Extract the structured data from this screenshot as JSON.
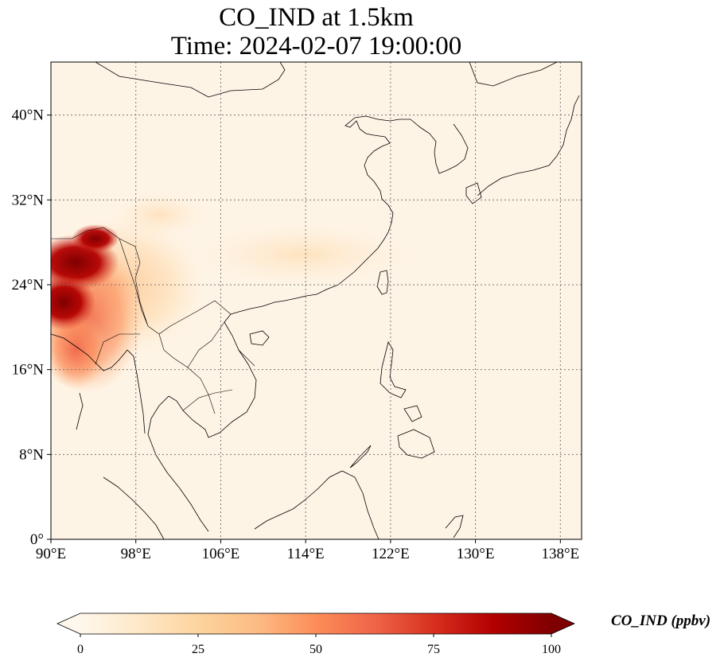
{
  "title": {
    "line1": "CO_IND at 1.5km",
    "line2": "Time: 2024-02-07 19:00:00"
  },
  "map": {
    "extent": {
      "lon": [
        90,
        140
      ],
      "lat": [
        0,
        45
      ]
    },
    "lon_ticks": [
      {
        "value": 90,
        "label": "90°E"
      },
      {
        "value": 98,
        "label": "98°E"
      },
      {
        "value": 106,
        "label": "106°E"
      },
      {
        "value": 114,
        "label": "114°E"
      },
      {
        "value": 122,
        "label": "122°E"
      },
      {
        "value": 130,
        "label": "130°E"
      },
      {
        "value": 138,
        "label": "138°E"
      }
    ],
    "lat_ticks": [
      {
        "value": 0,
        "label": "0°"
      },
      {
        "value": 8,
        "label": "8°N"
      },
      {
        "value": 16,
        "label": "16°N"
      },
      {
        "value": 24,
        "label": "24°N"
      },
      {
        "value": 32,
        "label": "32°N"
      },
      {
        "value": 40,
        "label": "40°N"
      }
    ],
    "gridlines": true
  },
  "colorbar": {
    "label": "CO_IND (ppbv)",
    "colormap": "OrRd",
    "extend": "both",
    "min": 0,
    "max": 100,
    "ticks": [
      {
        "value": 0,
        "label": "0"
      },
      {
        "value": 25,
        "label": "25"
      },
      {
        "value": 50,
        "label": "50"
      },
      {
        "value": 75,
        "label": "75"
      },
      {
        "value": 100,
        "label": "100"
      }
    ],
    "colors": [
      "#fff7ec",
      "#fee8c8",
      "#fdd49e",
      "#fdbb84",
      "#fc8d59",
      "#ef6548",
      "#d7301f",
      "#b30000",
      "#7f0000"
    ]
  },
  "colors": {
    "background_field": "#fef4e6",
    "coastline": "#000000",
    "gridline": "#777777"
  }
}
